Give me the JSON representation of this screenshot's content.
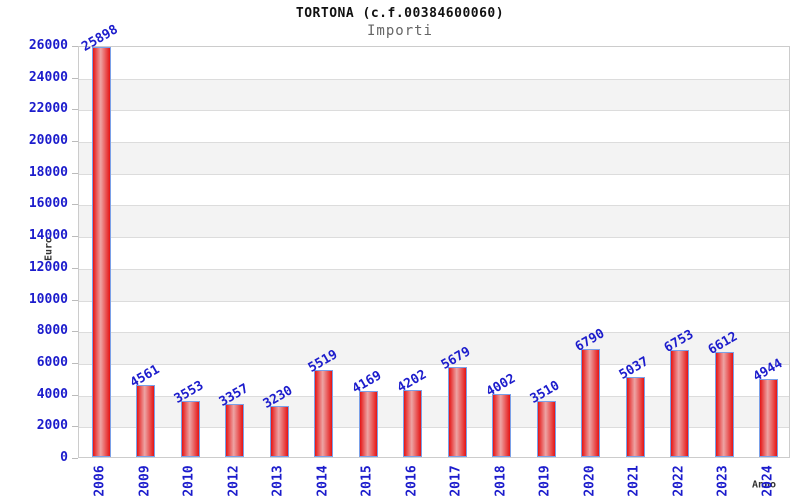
{
  "chart_data": {
    "type": "bar",
    "title": "TORTONA (c.f.00384600060)",
    "subtitle": "Importi",
    "xlabel": "Anno",
    "ylabel": "Euro",
    "categories": [
      "2006",
      "2009",
      "2010",
      "2012",
      "2013",
      "2014",
      "2015",
      "2016",
      "2017",
      "2018",
      "2019",
      "2020",
      "2021",
      "2022",
      "2023",
      "2024"
    ],
    "values": [
      25898,
      4561,
      3553,
      3357,
      3230,
      5519,
      4169,
      4202,
      5679,
      4002,
      3510,
      6790,
      5037,
      6753,
      6612,
      4944
    ],
    "ylim": [
      0,
      26000
    ],
    "ytick_step": 2000,
    "grid": true,
    "legend_position": "none",
    "layout_hints": {
      "x_tick_rotation_deg": -90,
      "value_label_rotation_deg": -30,
      "alternating_bands": true
    },
    "colors": {
      "tick_label_blue": "#1c1ccc",
      "value_label_blue": "#1c1ccc",
      "bar_fill_edge": "#e51414",
      "bar_fill_center": "#eda4a4",
      "bar_border": "#7aa0e8",
      "band_alt_gray": "#f3f3f3",
      "gridline_gray": "#dcdcdc",
      "plot_border_gray": "#cccccc",
      "axis_title_dark": "#333333",
      "title_color": "#111111",
      "subtitle_color": "#666666"
    }
  }
}
